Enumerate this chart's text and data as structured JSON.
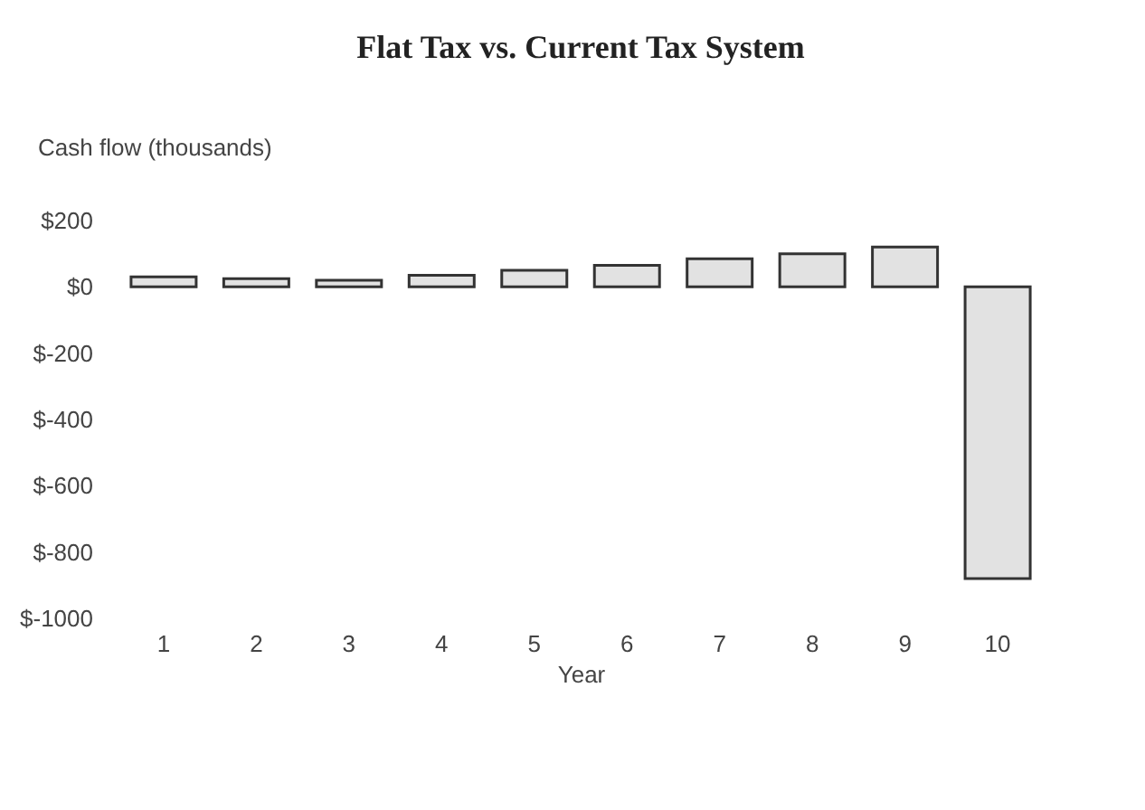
{
  "chart_data": {
    "type": "bar",
    "title": "Flat Tax vs. Current Tax System",
    "ylabel": "Cash flow (thousands)",
    "xlabel": "Year",
    "categories": [
      "1",
      "2",
      "3",
      "4",
      "5",
      "6",
      "7",
      "8",
      "9",
      "10"
    ],
    "values": [
      30,
      25,
      20,
      35,
      50,
      65,
      85,
      100,
      120,
      -880
    ],
    "color": "#e2e2e2",
    "ylim": [
      -1000,
      200
    ],
    "yticks": [
      {
        "value": 200,
        "label": "$200"
      },
      {
        "value": 0,
        "label": "$0"
      },
      {
        "value": -200,
        "label": "$-200"
      },
      {
        "value": -400,
        "label": "$-400"
      },
      {
        "value": -600,
        "label": "$-600"
      },
      {
        "value": -800,
        "label": "$-800"
      },
      {
        "value": -1000,
        "label": "$-1000"
      }
    ],
    "grid": false
  }
}
